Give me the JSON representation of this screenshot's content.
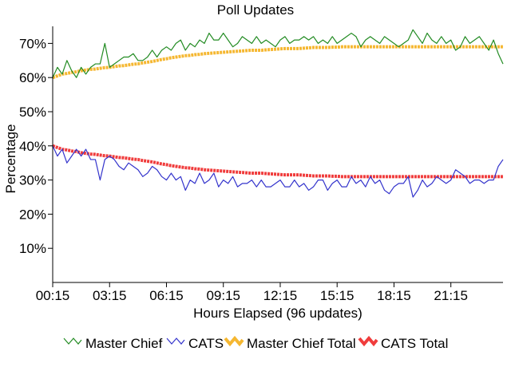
{
  "chart_data": {
    "type": "line",
    "title": "Poll Updates",
    "xlabel": "Hours Elapsed (96 updates)",
    "ylabel": "Percentage",
    "ylim": [
      0,
      75
    ],
    "yticks": [
      10,
      20,
      30,
      40,
      50,
      60,
      70
    ],
    "ytick_labels": [
      "10%",
      "20%",
      "30%",
      "40%",
      "50%",
      "60%",
      "70%"
    ],
    "xticks": [
      0,
      12,
      24,
      36,
      48,
      60,
      72,
      84
    ],
    "xtick_labels": [
      "00:15",
      "03:15",
      "06:15",
      "09:15",
      "12:15",
      "15:15",
      "18:15",
      "21:15"
    ],
    "x_count": 96,
    "legend_position": "bottom",
    "series": [
      {
        "name": "Master Chief",
        "color": "#228B22",
        "style": "thin",
        "values": [
          60,
          63,
          61,
          65,
          62,
          60,
          63,
          61,
          63,
          64,
          64,
          70,
          63,
          64,
          65,
          66,
          66,
          67,
          65,
          65,
          66,
          68,
          66,
          68,
          69,
          68,
          70,
          71,
          68,
          70,
          69,
          71,
          70,
          73,
          71,
          71,
          73,
          71,
          69,
          70,
          72,
          71,
          70,
          72,
          70,
          71,
          70,
          69,
          71,
          72,
          70,
          71,
          71,
          72,
          71,
          72,
          70,
          71,
          70,
          72,
          70,
          71,
          72,
          73,
          72,
          69,
          71,
          72,
          71,
          70,
          72,
          71,
          70,
          69,
          70,
          71,
          74,
          72,
          70,
          73,
          71,
          70,
          72,
          70,
          71,
          68,
          69,
          72,
          70,
          71,
          72,
          70,
          68,
          71,
          67,
          64
        ]
      },
      {
        "name": "CATS",
        "color": "#3333CC",
        "style": "thin",
        "values": [
          40,
          37,
          39,
          35,
          37,
          39,
          37,
          39,
          36,
          36,
          30,
          36,
          37,
          36,
          34,
          33,
          35,
          34,
          33,
          31,
          32,
          34,
          33,
          31,
          30,
          32,
          30,
          31,
          27,
          30,
          29,
          32,
          29,
          30,
          32,
          28,
          30,
          29,
          31,
          28,
          29,
          29,
          30,
          28,
          30,
          28,
          28,
          29,
          30,
          28,
          28,
          30,
          28,
          29,
          27,
          28,
          30,
          30,
          27,
          29,
          30,
          28,
          28,
          31,
          29,
          30,
          28,
          31,
          29,
          30,
          27,
          26,
          28,
          29,
          29,
          31,
          25,
          27,
          30,
          28,
          29,
          31,
          30,
          29,
          30,
          33,
          32,
          31,
          29,
          30,
          30,
          29,
          30,
          30,
          34,
          36
        ]
      },
      {
        "name": "Master Chief Total",
        "color": "#F5B731",
        "style": "thick",
        "values": [
          60,
          60.5,
          61,
          61.2,
          61.5,
          61.7,
          62,
          62.2,
          62.4,
          62.5,
          62.7,
          62.9,
          63,
          63.2,
          63.4,
          63.5,
          63.7,
          63.9,
          64,
          64.3,
          64.5,
          64.7,
          65,
          65.3,
          65.5,
          65.8,
          66,
          66.2,
          66.4,
          66.5,
          66.7,
          66.8,
          67,
          67.1,
          67.2,
          67.3,
          67.4,
          67.5,
          67.6,
          67.7,
          67.8,
          67.9,
          68,
          68,
          68,
          68.1,
          68.2,
          68.3,
          68.4,
          68.5,
          68.5,
          68.5,
          68.5,
          68.6,
          68.7,
          68.8,
          68.8,
          68.8,
          68.8,
          68.9,
          68.9,
          69,
          69,
          69,
          69,
          69,
          69,
          69,
          69,
          69,
          69,
          69,
          69,
          69,
          69,
          69,
          69,
          69,
          69,
          69,
          69,
          69,
          69,
          69,
          69,
          69,
          69,
          69,
          69,
          69,
          69,
          69,
          69,
          69,
          69,
          69
        ]
      },
      {
        "name": "CATS Total",
        "color": "#F03C3C",
        "style": "thick",
        "values": [
          40,
          39.5,
          39,
          38.8,
          38.5,
          38.3,
          38,
          37.8,
          37.6,
          37.5,
          37.3,
          37.1,
          37,
          36.8,
          36.6,
          36.5,
          36.3,
          36.1,
          36,
          35.7,
          35.5,
          35.3,
          35,
          34.7,
          34.5,
          34.2,
          34,
          33.8,
          33.6,
          33.5,
          33.3,
          33.2,
          33,
          32.9,
          32.8,
          32.7,
          32.6,
          32.5,
          32.4,
          32.3,
          32.2,
          32.1,
          32,
          32,
          32,
          31.9,
          31.8,
          31.7,
          31.6,
          31.5,
          31.5,
          31.5,
          31.5,
          31.4,
          31.3,
          31.2,
          31.2,
          31.2,
          31.2,
          31.1,
          31.1,
          31,
          31,
          31,
          31,
          31,
          31,
          31,
          31,
          31,
          31,
          31,
          31,
          31,
          31,
          31,
          31,
          31,
          31,
          31,
          31,
          31,
          31,
          31,
          31,
          31,
          31,
          31,
          31,
          31,
          31,
          31,
          31,
          31,
          31,
          31
        ]
      }
    ]
  }
}
